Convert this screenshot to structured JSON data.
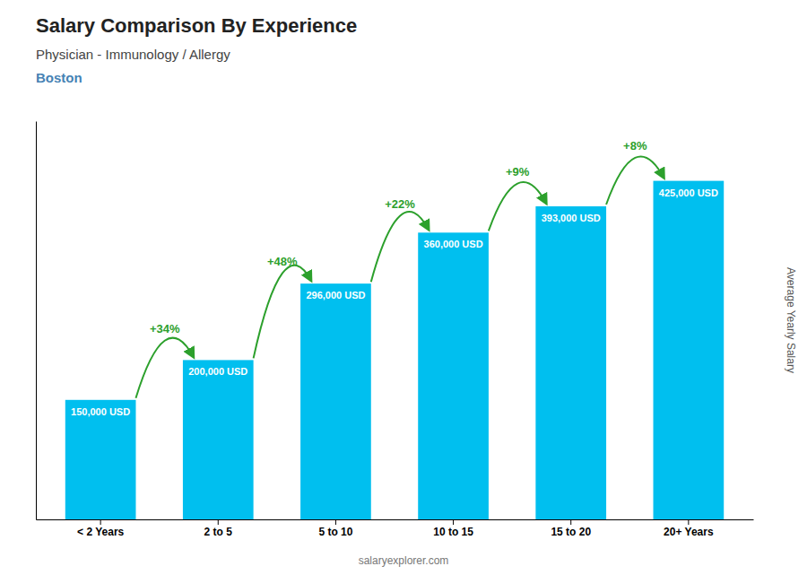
{
  "chart_data": {
    "type": "bar",
    "title": "Salary Comparison By Experience",
    "subtitle": [
      "Physician - Immunology / Allergy",
      "Boston"
    ],
    "ylabel": "Average Yearly Salary",
    "categories": [
      "< 2 Years",
      "2 to 5",
      "5 to 10",
      "10 to 15",
      "15 to 20",
      "20+ Years"
    ],
    "values": [
      150000,
      200000,
      296000,
      360000,
      393000,
      425000
    ],
    "value_labels": [
      "150,000 USD",
      "200,000 USD",
      "296,000 USD",
      "360,000 USD",
      "393,000 USD",
      "425,000 USD"
    ],
    "data_labels": true,
    "color": "#00bfef",
    "ylim": [
      0,
      500000
    ],
    "tick_labels": "x",
    "annotations": [
      "+34%",
      "+48%",
      "+22%",
      "+9%",
      "+8%"
    ],
    "source": "salaryexplorer.com"
  }
}
